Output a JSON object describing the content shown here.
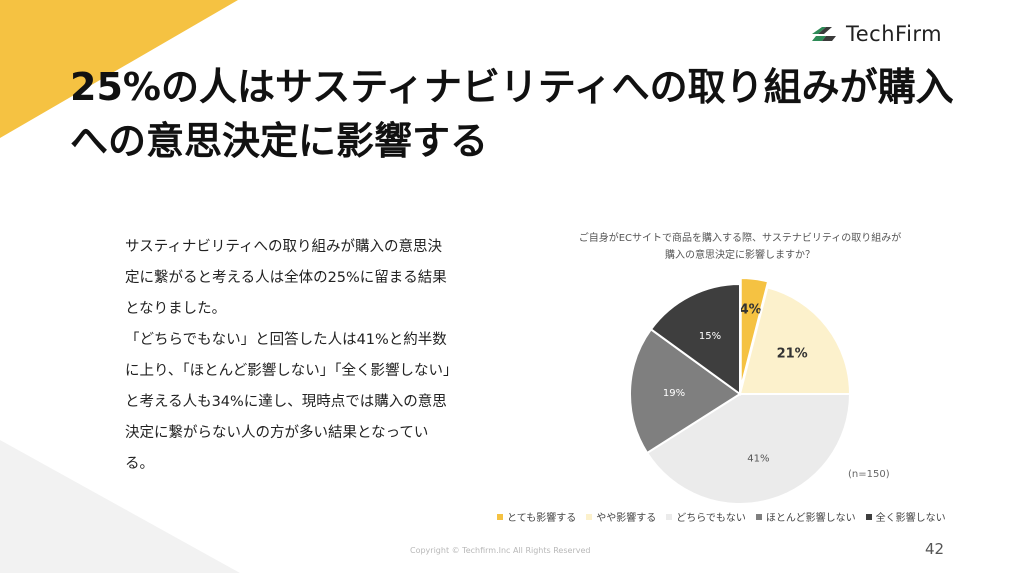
{
  "brand": {
    "name": "TechFirm"
  },
  "slide": {
    "title": "25%の人はサスティナビリティへの取り組みが購入への意思決定に影響する",
    "body": [
      "サスティナビリティへの取り組みが購入の意思決定に繋がると考える人は全体の25%に留まる結果となりました。",
      "「どちらでもない」と回答した人は41%と約半数に上り、「ほとんど影響しない」「全く影響しない」と考える人も34%に達し、現時点では購入の意思決定に繋がらない人の方が多い結果となっている。"
    ],
    "footer": "Copyright © Techfirm.Inc All Rights Reserved",
    "page_number": "42",
    "accent_color": "#F5C242"
  },
  "chart_data": {
    "type": "pie",
    "title_line1": "ご自身がECサイトで商品を購入する際、サステナビリティの取り組みが",
    "title_line2": "購入の意思決定に影響しますか？",
    "note": "(n=150)",
    "legend_position": "bottom",
    "slices": [
      {
        "name": "とても影響する",
        "value": 4,
        "label": "4%",
        "color": "#F5C242",
        "label_color": "#333333"
      },
      {
        "name": "やや影響する",
        "value": 21,
        "label": "21%",
        "color": "#FCF1CC",
        "label_color": "#333333"
      },
      {
        "name": "どちらでもない",
        "value": 41,
        "label": "41%",
        "color": "#EBEBEB",
        "label_color": "#555555"
      },
      {
        "name": "ほとんど影響しない",
        "value": 19,
        "label": "19%",
        "color": "#7F7F7F",
        "label_color": "#ffffff"
      },
      {
        "name": "全く影響しない",
        "value": 15,
        "label": "15%",
        "color": "#3E3E3E",
        "label_color": "#ffffff"
      }
    ]
  }
}
